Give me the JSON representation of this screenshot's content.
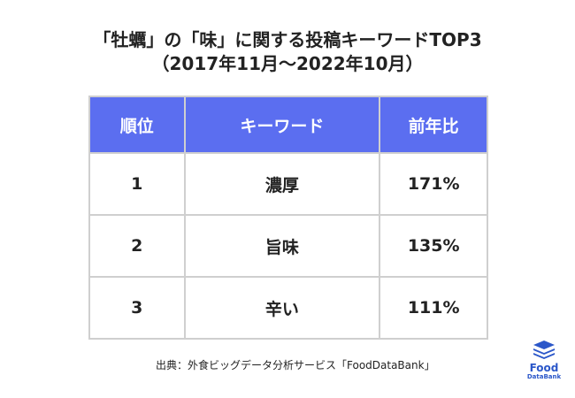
{
  "title": {
    "line1": "「牡蠣」の「味」に関する投稿キーワードTOP3",
    "line2": "（2017年11月〜2022年10月）"
  },
  "table": {
    "headers": [
      "順位",
      "キーワード",
      "前年比"
    ],
    "rows": [
      {
        "rank": "1",
        "keyword": "濃厚",
        "yoy": "171%"
      },
      {
        "rank": "2",
        "keyword": "旨味",
        "yoy": "135%"
      },
      {
        "rank": "3",
        "keyword": "辛い",
        "yoy": "111%"
      }
    ],
    "header_color": "#5b6ef0"
  },
  "source": "出典：外食ビッグデータ分析サービス「FoodDataBank」",
  "logo": {
    "line1": "Food",
    "line2": "DataBank",
    "icon": "stacked-layers-icon",
    "color": "#2b57c9"
  }
}
